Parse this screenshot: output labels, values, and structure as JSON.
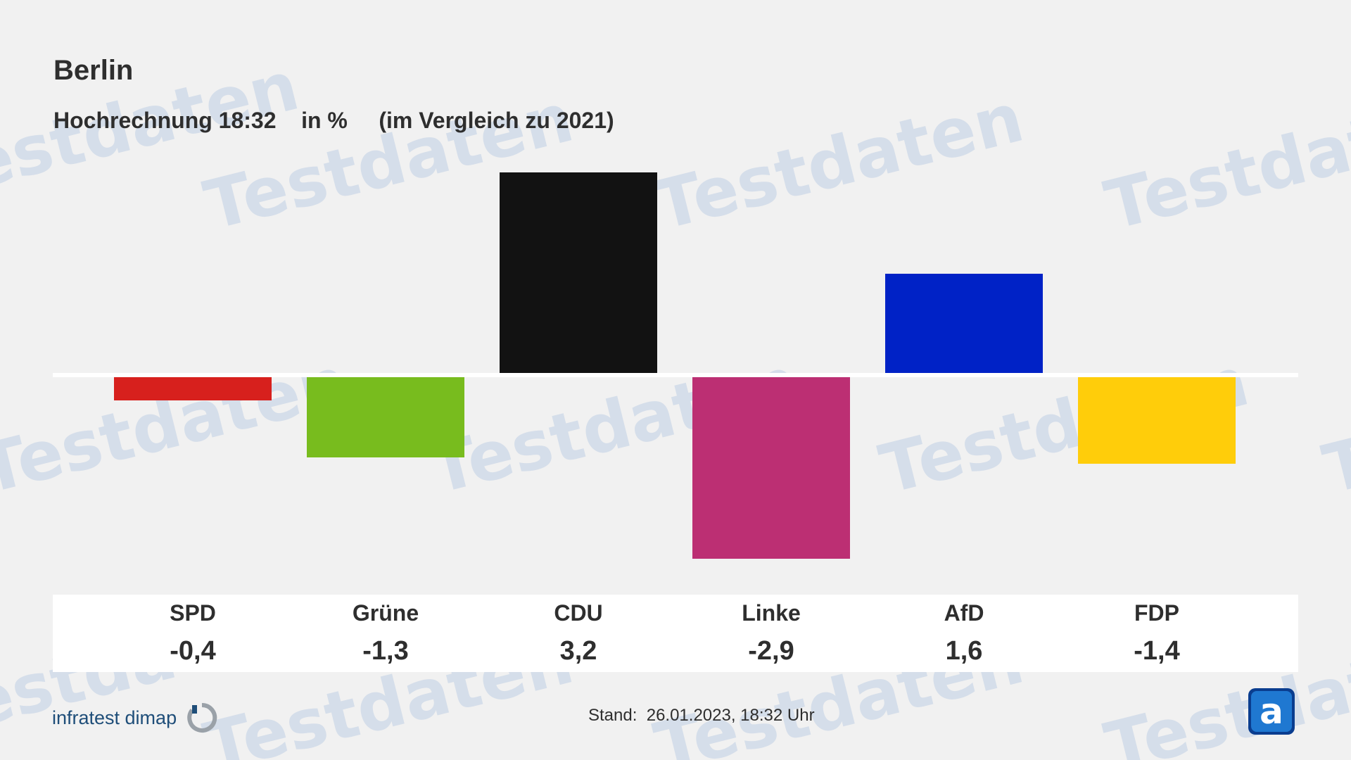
{
  "header": {
    "title": "Berlin",
    "subtitle": "Hochrechnung 18:32    in %     (im Vergleich zu 2021)"
  },
  "watermark_text": "Testdaten",
  "chart_data": {
    "type": "bar",
    "title": "Berlin",
    "subtitle": "Hochrechnung 18:32 in % (im Vergleich zu 2021)",
    "categories": [
      "SPD",
      "Grüne",
      "CDU",
      "Linke",
      "AfD",
      "FDP"
    ],
    "values": [
      -0.4,
      -1.3,
      3.2,
      -2.9,
      1.6,
      -1.4
    ],
    "value_labels": [
      "-0,4",
      "-1,3",
      "3,2",
      "-2,9",
      "1,6",
      "-1,4"
    ],
    "colors": [
      "#d7201d",
      "#78bc1e",
      "#121212",
      "#bc2f73",
      "#0022c6",
      "#ffcd0a"
    ],
    "zero_line_color": "#ffffff",
    "grid": false,
    "legend": "none"
  },
  "footer": {
    "brand": "infratest dimap",
    "stand": "Stand:  26.01.2023, 18:32 Uhr"
  },
  "icons": {
    "brand_logo": "infratest-dimap-logo-icon",
    "corner_logo": "ard-logo-icon"
  }
}
